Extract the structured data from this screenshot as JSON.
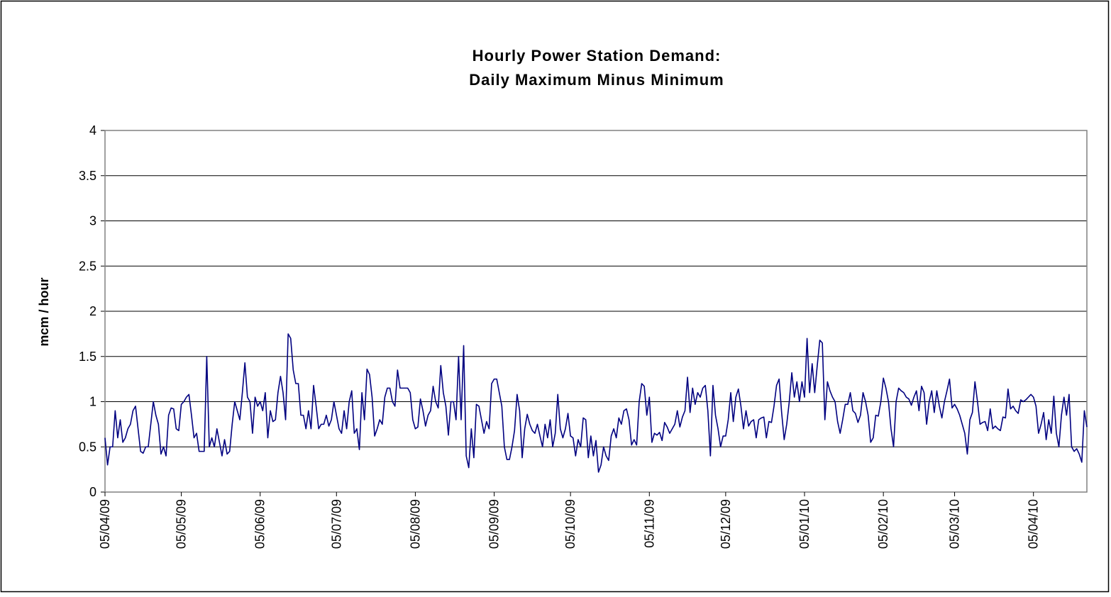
{
  "chart_data": {
    "type": "line",
    "title": [
      "Hourly Power Station Demand:",
      "Daily Maximum Minus Minimum"
    ],
    "y_label": "mcm / hour",
    "color": "#000080",
    "grid": true,
    "xlim": [
      0,
      386
    ],
    "xticks": [
      {
        "value": 0,
        "label": "05/04/09"
      },
      {
        "value": 30,
        "label": "05/05/09"
      },
      {
        "value": 61,
        "label": "05/06/09"
      },
      {
        "value": 91,
        "label": "05/07/09"
      },
      {
        "value": 122,
        "label": "05/08/09"
      },
      {
        "value": 153,
        "label": "05/09/09"
      },
      {
        "value": 183,
        "label": "05/10/09"
      },
      {
        "value": 214,
        "label": "05/11/09"
      },
      {
        "value": 244,
        "label": "05/12/09"
      },
      {
        "value": 275,
        "label": "05/01/10"
      },
      {
        "value": 306,
        "label": "05/02/10"
      },
      {
        "value": 334,
        "label": "05/03/10"
      },
      {
        "value": 365,
        "label": "05/04/10"
      }
    ],
    "ylim": [
      0,
      4
    ],
    "yticks": [
      0,
      0.5,
      1,
      1.5,
      2,
      2.5,
      3,
      3.5,
      4
    ],
    "x": [
      0,
      1,
      2,
      3,
      4,
      5,
      6,
      7,
      8,
      9,
      10,
      11,
      12,
      13,
      14,
      15,
      16,
      17,
      18,
      19,
      20,
      21,
      22,
      23,
      24,
      25,
      26,
      27,
      28,
      29,
      30,
      31,
      32,
      33,
      34,
      35,
      36,
      37,
      38,
      39,
      40,
      41,
      42,
      43,
      44,
      45,
      46,
      47,
      48,
      49,
      50,
      51,
      52,
      53,
      54,
      55,
      56,
      57,
      58,
      59,
      60,
      61,
      62,
      63,
      64,
      65,
      66,
      67,
      68,
      69,
      70,
      71,
      72,
      73,
      74,
      75,
      76,
      77,
      78,
      79,
      80,
      81,
      82,
      83,
      84,
      85,
      86,
      87,
      88,
      89,
      90,
      91,
      92,
      93,
      94,
      95,
      96,
      97,
      98,
      99,
      100,
      101,
      102,
      103,
      104,
      105,
      106,
      107,
      108,
      109,
      110,
      111,
      112,
      113,
      114,
      115,
      116,
      117,
      118,
      119,
      120,
      121,
      122,
      123,
      124,
      125,
      126,
      127,
      128,
      129,
      130,
      131,
      132,
      133,
      134,
      135,
      136,
      137,
      138,
      139,
      140,
      141,
      142,
      143,
      144,
      145,
      146,
      147,
      148,
      149,
      150,
      151,
      152,
      153,
      154,
      155,
      156,
      157,
      158,
      159,
      160,
      161,
      162,
      163,
      164,
      165,
      166,
      167,
      168,
      169,
      170,
      171,
      172,
      173,
      174,
      175,
      176,
      177,
      178,
      179,
      180,
      181,
      182,
      183,
      184,
      185,
      186,
      187,
      188,
      189,
      190,
      191,
      192,
      193,
      194,
      195,
      196,
      197,
      198,
      199,
      200,
      201,
      202,
      203,
      204,
      205,
      206,
      207,
      208,
      209,
      210,
      211,
      212,
      213,
      214,
      215,
      216,
      217,
      218,
      219,
      220,
      221,
      222,
      223,
      224,
      225,
      226,
      227,
      228,
      229,
      230,
      231,
      232,
      233,
      234,
      235,
      236,
      237,
      238,
      239,
      240,
      241,
      242,
      243,
      244,
      245,
      246,
      247,
      248,
      249,
      250,
      251,
      252,
      253,
      254,
      255,
      256,
      257,
      258,
      259,
      260,
      261,
      262,
      263,
      264,
      265,
      266,
      267,
      268,
      269,
      270,
      271,
      272,
      273,
      274,
      275,
      276,
      277,
      278,
      279,
      280,
      281,
      282,
      283,
      284,
      285,
      286,
      287,
      288,
      289,
      290,
      291,
      292,
      293,
      294,
      295,
      296,
      297,
      298,
      299,
      300,
      301,
      302,
      303,
      304,
      305,
      306,
      307,
      308,
      309,
      310,
      311,
      312,
      313,
      314,
      315,
      316,
      317,
      318,
      319,
      320,
      321,
      322,
      323,
      324,
      325,
      326,
      327,
      328,
      329,
      330,
      331,
      332,
      333,
      334,
      335,
      336,
      337,
      338,
      339,
      340,
      341,
      342,
      343,
      344,
      345,
      346,
      347,
      348,
      349,
      350,
      351,
      352,
      353,
      354,
      355,
      356,
      357,
      358,
      359,
      360,
      361,
      362,
      363,
      364,
      365,
      366,
      367,
      368,
      369,
      370,
      371,
      372,
      373,
      374,
      375,
      376,
      377,
      378,
      379,
      380,
      381,
      382,
      383,
      384,
      385,
      386
    ],
    "values": [
      0.6,
      0.3,
      0.5,
      0.5,
      0.9,
      0.6,
      0.8,
      0.55,
      0.6,
      0.7,
      0.75,
      0.9,
      0.95,
      0.7,
      0.45,
      0.43,
      0.5,
      0.5,
      0.75,
      1.0,
      0.85,
      0.75,
      0.42,
      0.5,
      0.4,
      0.85,
      0.93,
      0.92,
      0.7,
      0.68,
      0.97,
      1.0,
      1.05,
      1.08,
      0.85,
      0.6,
      0.65,
      0.45,
      0.45,
      0.45,
      1.5,
      0.5,
      0.6,
      0.5,
      0.7,
      0.55,
      0.4,
      0.58,
      0.42,
      0.45,
      0.75,
      1.0,
      0.9,
      0.8,
      1.1,
      1.43,
      1.05,
      1.0,
      0.65,
      1.05,
      0.95,
      1.0,
      0.9,
      1.1,
      0.6,
      0.9,
      0.78,
      0.8,
      1.1,
      1.28,
      1.1,
      0.8,
      1.75,
      1.7,
      1.35,
      1.2,
      1.2,
      0.85,
      0.85,
      0.7,
      0.9,
      0.7,
      1.18,
      0.95,
      0.7,
      0.75,
      0.75,
      0.85,
      0.73,
      0.8,
      1.0,
      0.85,
      0.7,
      0.65,
      0.9,
      0.7,
      1.0,
      1.12,
      0.65,
      0.7,
      0.47,
      1.1,
      0.8,
      1.36,
      1.3,
      1.05,
      0.62,
      0.7,
      0.8,
      0.75,
      1.05,
      1.15,
      1.15,
      1.0,
      0.95,
      1.35,
      1.15,
      1.15,
      1.15,
      1.15,
      1.1,
      0.8,
      0.7,
      0.72,
      1.03,
      0.9,
      0.73,
      0.85,
      0.9,
      1.17,
      1.0,
      0.93,
      1.4,
      1.1,
      0.95,
      0.63,
      1.0,
      1.0,
      0.8,
      1.5,
      0.8,
      1.62,
      0.4,
      0.27,
      0.7,
      0.38,
      0.97,
      0.95,
      0.8,
      0.65,
      0.78,
      0.7,
      1.2,
      1.25,
      1.25,
      1.1,
      0.95,
      0.5,
      0.36,
      0.36,
      0.5,
      0.68,
      1.08,
      0.9,
      0.38,
      0.7,
      0.86,
      0.75,
      0.68,
      0.65,
      0.75,
      0.62,
      0.5,
      0.75,
      0.6,
      0.8,
      0.5,
      0.65,
      1.08,
      0.7,
      0.6,
      0.7,
      0.87,
      0.62,
      0.6,
      0.4,
      0.58,
      0.5,
      0.82,
      0.8,
      0.38,
      0.62,
      0.4,
      0.57,
      0.22,
      0.3,
      0.5,
      0.4,
      0.35,
      0.62,
      0.7,
      0.6,
      0.82,
      0.75,
      0.9,
      0.92,
      0.8,
      0.52,
      0.58,
      0.52,
      1.0,
      1.2,
      1.17,
      0.85,
      1.05,
      0.55,
      0.65,
      0.63,
      0.66,
      0.57,
      0.77,
      0.72,
      0.65,
      0.7,
      0.75,
      0.9,
      0.72,
      0.83,
      0.9,
      1.27,
      0.88,
      1.15,
      0.97,
      1.1,
      1.05,
      1.15,
      1.18,
      0.9,
      0.4,
      1.18,
      0.85,
      0.7,
      0.5,
      0.62,
      0.62,
      0.8,
      1.1,
      0.78,
      1.05,
      1.14,
      0.95,
      0.7,
      0.9,
      0.73,
      0.78,
      0.8,
      0.6,
      0.8,
      0.82,
      0.83,
      0.6,
      0.78,
      0.77,
      0.95,
      1.18,
      1.25,
      0.88,
      0.58,
      0.75,
      1.0,
      1.32,
      1.05,
      1.22,
      1.0,
      1.22,
      1.05,
      1.7,
      1.1,
      1.42,
      1.1,
      1.4,
      1.68,
      1.65,
      0.8,
      1.22,
      1.12,
      1.05,
      1.0,
      0.78,
      0.65,
      0.8,
      0.97,
      0.97,
      1.1,
      0.9,
      0.87,
      0.77,
      0.85,
      1.1,
      1.0,
      0.85,
      0.55,
      0.6,
      0.85,
      0.84,
      1.0,
      1.26,
      1.15,
      1.0,
      0.7,
      0.5,
      1.0,
      1.15,
      1.12,
      1.1,
      1.05,
      1.03,
      0.96,
      1.05,
      1.12,
      0.9,
      1.17,
      1.1,
      0.75,
      1.0,
      1.12,
      0.88,
      1.12,
      0.95,
      0.82,
      1.0,
      1.12,
      1.25,
      0.93,
      0.97,
      0.92,
      0.85,
      0.75,
      0.65,
      0.42,
      0.8,
      0.88,
      1.22,
      1.0,
      0.75,
      0.77,
      0.78,
      0.68,
      0.92,
      0.7,
      0.73,
      0.7,
      0.68,
      0.83,
      0.82,
      1.14,
      0.92,
      0.95,
      0.9,
      0.87,
      1.02,
      1.0,
      1.02,
      1.05,
      1.08,
      1.05,
      0.95,
      0.65,
      0.75,
      0.88,
      0.58,
      0.8,
      0.65,
      1.06,
      0.65,
      0.5,
      0.85,
      1.05,
      0.85,
      1.08,
      0.5,
      0.45,
      0.48,
      0.42,
      0.33,
      0.9,
      0.72
    ]
  }
}
